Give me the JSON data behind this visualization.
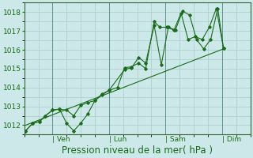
{
  "title": "",
  "xlabel": "Pression niveau de la mer( hPa )",
  "bg_color": "#cce8e8",
  "grid_color": "#aacccc",
  "line_color": "#1a6b1a",
  "ylim": [
    1011.5,
    1018.5
  ],
  "yticks": [
    1012,
    1013,
    1014,
    1015,
    1016,
    1017,
    1018
  ],
  "day_labels": [
    "| Ven",
    "| Lun",
    "| Sam",
    "| Dim"
  ],
  "day_ticks": [
    1,
    3,
    5,
    7
  ],
  "xlim": [
    0,
    8
  ],
  "series1_x": [
    0.05,
    0.3,
    0.55,
    0.75,
    1.0,
    1.25,
    1.5,
    1.75,
    2.0,
    2.25,
    2.5,
    2.75,
    3.0,
    3.3,
    3.55,
    3.8,
    4.05,
    4.3,
    4.6,
    4.8,
    5.05,
    5.3,
    5.55,
    5.8,
    6.05,
    6.3,
    6.55,
    6.8,
    7.05
  ],
  "series1_y": [
    1011.7,
    1012.1,
    1012.2,
    1012.5,
    1012.8,
    1012.85,
    1012.1,
    1011.7,
    1012.1,
    1012.6,
    1013.3,
    1013.65,
    1013.85,
    1014.0,
    1015.05,
    1015.1,
    1015.3,
    1015.0,
    1017.5,
    1017.2,
    1017.2,
    1017.05,
    1017.95,
    1016.55,
    1016.7,
    1016.55,
    1017.2,
    1018.2,
    1016.1
  ],
  "series2_x": [
    0.05,
    0.3,
    0.55,
    0.75,
    1.0,
    1.25,
    1.5,
    1.75,
    2.0,
    2.25,
    2.5,
    2.75,
    3.0,
    3.55,
    3.8,
    4.05,
    4.3,
    4.6,
    4.85,
    5.1,
    5.35,
    5.6,
    5.85,
    6.1,
    6.35,
    6.6,
    6.85,
    7.05
  ],
  "series2_y": [
    1011.7,
    1012.1,
    1012.2,
    1012.5,
    1012.8,
    1012.85,
    1012.8,
    1012.5,
    1013.05,
    1013.2,
    1013.3,
    1013.6,
    1013.85,
    1014.95,
    1015.05,
    1015.6,
    1015.3,
    1017.3,
    1015.2,
    1017.2,
    1017.05,
    1018.05,
    1017.85,
    1016.55,
    1016.05,
    1016.55,
    1018.2,
    1016.1
  ],
  "trend_x": [
    0.05,
    7.05
  ],
  "trend_y": [
    1012.0,
    1016.05
  ],
  "figsize": [
    3.2,
    2.0
  ],
  "dpi": 100,
  "tick_label_size": 6.5,
  "xlabel_size": 8.5
}
